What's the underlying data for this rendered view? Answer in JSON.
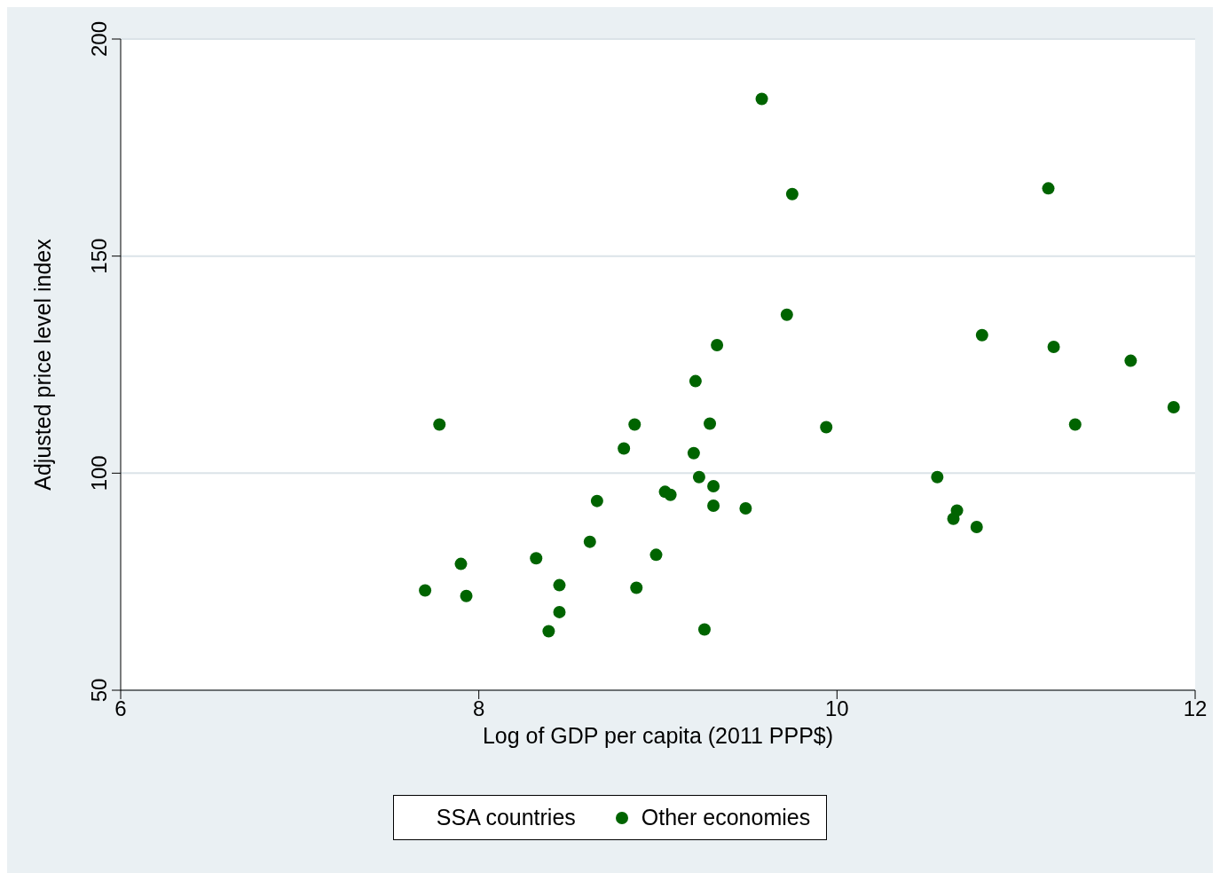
{
  "chart_data": {
    "type": "scatter",
    "xlabel": "Log of GDP per capita (2011 PPP$)",
    "ylabel": "Adjusted price level index",
    "xlim": [
      6,
      12
    ],
    "xticks": [
      6,
      8,
      10,
      12
    ],
    "ylim": [
      50,
      200
    ],
    "yticks": [
      50,
      100,
      150,
      200
    ],
    "grid": "y",
    "legend": "bottom",
    "marker": "circle",
    "series": [
      {
        "name": "SSA countries"
      },
      {
        "name": "Other economies",
        "color": "#006400",
        "x": [
          9.58,
          9.75,
          11.18,
          9.72,
          10.81,
          9.33,
          11.21,
          11.64,
          9.21,
          7.78,
          8.87,
          9.29,
          9.94,
          11.33,
          11.88,
          8.81,
          9.2,
          10.56,
          9.23,
          9.31,
          9.04,
          9.07,
          8.66,
          9.31,
          9.49,
          10.67,
          10.65,
          10.78,
          8.62,
          8.32,
          8.99,
          7.9,
          7.7,
          7.93,
          8.45,
          8.88,
          8.45,
          8.39,
          9.26
        ],
        "values": [
          186.2,
          164.3,
          165.6,
          136.5,
          131.8,
          129.5,
          129.1,
          125.9,
          121.2,
          111.2,
          111.2,
          111.4,
          110.6,
          111.2,
          115.2,
          105.7,
          104.6,
          99.1,
          99.1,
          97,
          95.7,
          95,
          93.6,
          92.5,
          91.9,
          91.4,
          89.5,
          87.6,
          84.2,
          80.4,
          81.2,
          79.1,
          73,
          71.7,
          74.2,
          73.6,
          68,
          63.6,
          64
        ]
      }
    ]
  }
}
